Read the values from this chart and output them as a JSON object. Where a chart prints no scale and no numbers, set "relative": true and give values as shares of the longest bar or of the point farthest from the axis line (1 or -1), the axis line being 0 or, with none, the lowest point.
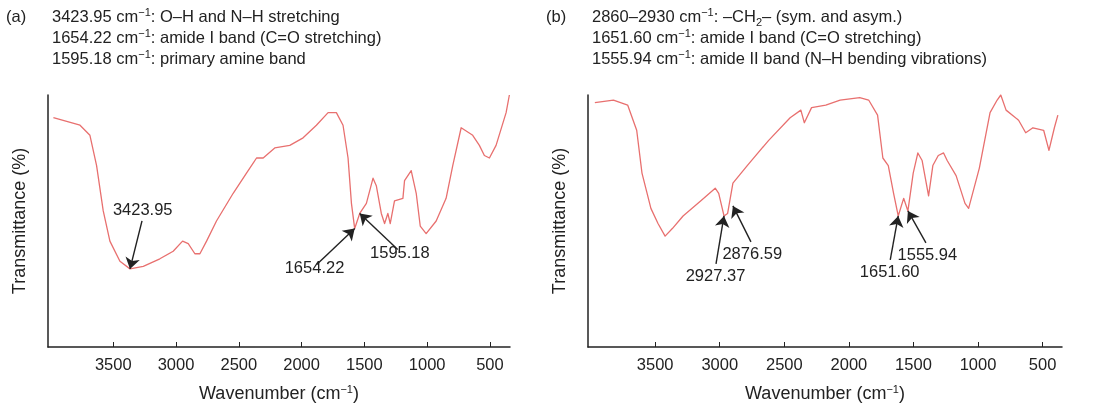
{
  "chart_data": [
    {
      "type": "line",
      "title": "(a)",
      "xlabel": "Wavenumber (cm$^{−1}$)",
      "ylabel": "Transmittance (%)",
      "relative": true,
      "marker": "none",
      "line_style": "solid",
      "xlim": [
        4020,
        340
      ],
      "xticks": [
        3500,
        3000,
        2500,
        2000,
        1500,
        1000,
        500
      ],
      "annotations": [
        "3423.95 cm$^{−1}$: O–H and N–H stretching",
        "1654.22 cm$^{−1}$: amide I band (C=O stretching)",
        "1595.18 cm$^{−1}$: primary amine band",
        {
          "text": "3423.95",
          "x": 3367,
          "y": 0.31
        },
        {
          "text": "1654.22",
          "x": 1577,
          "y": 0.47
        },
        {
          "text": "1595.18",
          "x": 1537,
          "y": 0.53
        }
      ],
      "series": [
        {
          "color": "#e8706f",
          "x": [
            3977,
            3765,
            3686,
            3633,
            3580,
            3527,
            3447,
            3367,
            3261,
            3129,
            3023,
            2948,
            2903,
            2850,
            2810,
            2757,
            2678,
            2545,
            2439,
            2359,
            2306,
            2214,
            2094,
            1988,
            1882,
            1789,
            1723,
            1670,
            1630,
            1603,
            1577,
            1537,
            1484,
            1431,
            1405,
            1365,
            1339,
            1313,
            1294,
            1260,
            1193,
            1180,
            1127,
            1087,
            1055,
            1008,
            928,
            849,
            796,
            729,
            637,
            584,
            544,
            504,
            451,
            371,
            345
          ],
          "values": [
            0.91,
            0.88,
            0.84,
            0.72,
            0.54,
            0.42,
            0.34,
            0.31,
            0.32,
            0.35,
            0.38,
            0.42,
            0.41,
            0.37,
            0.37,
            0.42,
            0.5,
            0.61,
            0.69,
            0.75,
            0.75,
            0.79,
            0.8,
            0.83,
            0.88,
            0.93,
            0.93,
            0.88,
            0.75,
            0.57,
            0.47,
            0.53,
            0.57,
            0.67,
            0.64,
            0.53,
            0.49,
            0.53,
            0.49,
            0.58,
            0.59,
            0.66,
            0.7,
            0.61,
            0.48,
            0.45,
            0.5,
            0.59,
            0.72,
            0.87,
            0.84,
            0.8,
            0.76,
            0.75,
            0.8,
            0.93,
            1
          ]
        }
      ]
    },
    {
      "type": "line",
      "title": "(b)",
      "xlabel": "Wavenumber (cm$^{−1}$)",
      "ylabel": "Transmittance (%)",
      "relative": true,
      "marker": "none",
      "line_style": "solid",
      "xlim": [
        4020,
        350
      ],
      "xticks": [
        3500,
        3000,
        2500,
        2000,
        1500,
        1000,
        500
      ],
      "annotations": [
        "2860–2930 cm$^{−1}$: –CH$_{2}$– (sym. and asym.)",
        "1651.60 cm$^{−1}$: amide I band  (C=O stretching)",
        "1555.94 cm$^{−1}$: amide II band (N–H bending vibrations)",
        {
          "text": "2927.37",
          "x": 2967,
          "y": 0.52
        },
        {
          "text": "2876.59",
          "x": 2898,
          "y": 0.56
        },
        {
          "text": "1651.60",
          "x": 1618,
          "y": 0.52
        },
        {
          "text": "1555.94",
          "x": 1543,
          "y": 0.54
        }
      ],
      "series": [
        {
          "color": "#e8706f",
          "x": [
            3967,
            3823,
            3713,
            3643,
            3602,
            3533,
            3478,
            3423,
            3367,
            3284,
            3146,
            3035,
            3008,
            2967,
            2939,
            2898,
            2787,
            2621,
            2455,
            2372,
            2345,
            2289,
            2179,
            2068,
            1916,
            1847,
            1778,
            1737,
            1695,
            1654,
            1618,
            1576,
            1543,
            1502,
            1466,
            1433,
            1383,
            1350,
            1308,
            1267,
            1239,
            1170,
            1101,
            1073,
            990,
            907,
            852,
            824,
            783,
            686,
            631,
            575,
            492,
            451,
            409,
            382
          ],
          "values": [
            0.97,
            0.98,
            0.96,
            0.86,
            0.69,
            0.55,
            0.49,
            0.44,
            0.47,
            0.52,
            0.58,
            0.63,
            0.61,
            0.52,
            0.53,
            0.65,
            0.72,
            0.82,
            0.91,
            0.94,
            0.89,
            0.95,
            0.96,
            0.98,
            0.99,
            0.98,
            0.92,
            0.75,
            0.72,
            0.61,
            0.52,
            0.59,
            0.54,
            0.69,
            0.77,
            0.74,
            0.6,
            0.72,
            0.76,
            0.77,
            0.74,
            0.68,
            0.57,
            0.55,
            0.71,
            0.93,
            0.98,
            1,
            0.94,
            0.9,
            0.85,
            0.87,
            0.86,
            0.78,
            0.87,
            0.92
          ]
        }
      ]
    }
  ]
}
